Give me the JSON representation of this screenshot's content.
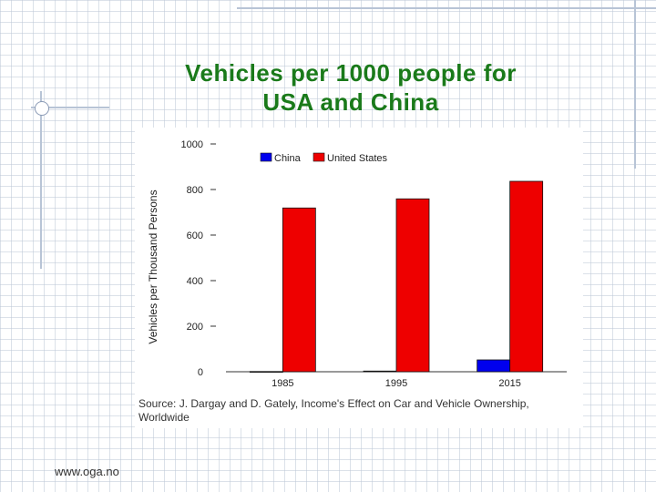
{
  "slide": {
    "title_line1": "Vehicles per 1000 people for",
    "title_line2": "USA and China",
    "source": "Source: J. Dargay and D. Gately, Income's Effect on Car and Vehicle Ownership, Worldwide",
    "footer": "www.oga.no"
  },
  "colors": {
    "title": "#1a7a1a",
    "china": "#0000ee",
    "usa": "#ee0000"
  },
  "chart_data": {
    "type": "bar",
    "categories": [
      "1985",
      "1995",
      "2015"
    ],
    "series": [
      {
        "name": "China",
        "values": [
          1,
          3,
          52
        ],
        "color": "#0000ee"
      },
      {
        "name": "United States",
        "values": [
          719,
          759,
          836
        ],
        "color": "#ee0000"
      }
    ],
    "ylabel": "Vehicles per Thousand Persons",
    "xlabel": "",
    "ylim": [
      0,
      1000
    ],
    "yticks": [
      0,
      200,
      400,
      600,
      800,
      1000
    ],
    "ytick_labels": [
      "0",
      "200",
      "400",
      "600",
      "800",
      "1000"
    ],
    "legend": "top-center",
    "grid": false
  }
}
